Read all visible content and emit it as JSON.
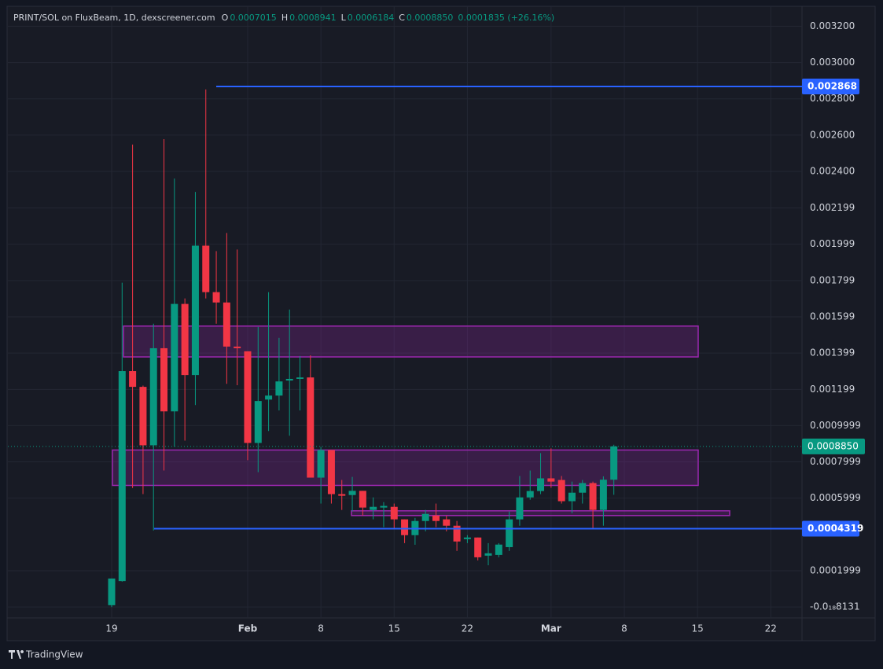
{
  "chart_data": {
    "type": "candlestick",
    "title": "PRINT/SOL on FluxBeam, 1D, dexscreener.com",
    "ohlc_legend": [
      {
        "key": "O",
        "value": "0.0007015"
      },
      {
        "key": "H",
        "value": "0.0008941"
      },
      {
        "key": "L",
        "value": "0.0006184"
      },
      {
        "key": "C",
        "value": "0.0008850"
      }
    ],
    "change": "0.0001835 (+26.16%)",
    "categories": [
      "19",
      null,
      null,
      null,
      null,
      null,
      null,
      null,
      null,
      null,
      null,
      null,
      null,
      "Feb",
      null,
      null,
      null,
      null,
      null,
      null,
      "8",
      null,
      null,
      null,
      null,
      null,
      null,
      "15",
      null,
      null,
      null,
      null,
      null,
      null,
      "22",
      null,
      null,
      null,
      null,
      null,
      null,
      null,
      "Mar",
      null,
      null,
      null,
      null,
      null,
      null,
      "8",
      null,
      null,
      null,
      null,
      null,
      null,
      "15",
      null,
      null,
      null,
      null,
      null,
      null,
      "22"
    ],
    "open": [
      1e-05,
      0.000143,
      0.0013,
      0.001213,
      0.000891,
      0.001426,
      0.001078,
      0.00167,
      0.001278,
      0.001991,
      0.001735,
      0.001678,
      0.001435,
      0.001409,
      0.000904,
      0.001143,
      0.001165,
      0.001248,
      0.001257,
      0.001265,
      0.000713,
      0.000865,
      0.000622,
      0.000617,
      0.00064,
      0.000535,
      0.000548,
      0.000552,
      0.000483,
      0.000396,
      0.000474,
      0.000504,
      0.000483,
      0.000448,
      0.000374,
      0.000383,
      0.000283,
      0.000287,
      0.00033,
      0.000483,
      0.000604,
      0.000639,
      0.000709,
      0.0007,
      0.000583,
      0.00063,
      0.000683,
      0.000535,
      0.0007015,
      null,
      null,
      null,
      null,
      null,
      null,
      null,
      null,
      null,
      null,
      null,
      null,
      null,
      null,
      null
    ],
    "high": [
      0.000157,
      0.001787,
      0.002548,
      0.00122,
      0.001561,
      0.002578,
      0.002361,
      0.0017,
      0.002287,
      0.002852,
      0.001961,
      0.002061,
      0.00197,
      0.001409,
      0.001543,
      0.001735,
      0.001483,
      0.001639,
      0.001383,
      0.001387,
      0.000883,
      0.000865,
      0.0007,
      0.000717,
      0.00064,
      0.000604,
      0.000578,
      0.00057,
      0.000483,
      0.000491,
      0.000535,
      0.00057,
      0.000504,
      0.000474,
      0.000396,
      0.000383,
      0.000352,
      0.000352,
      0.000526,
      0.000722,
      0.000752,
      0.000848,
      0.000874,
      0.000722,
      0.000691,
      0.0007,
      0.000691,
      0.00072,
      0.0008941,
      null,
      null,
      null,
      null,
      null,
      null,
      null,
      null,
      null,
      null,
      null,
      null,
      null,
      null,
      null
    ],
    "low": [
      0,
      0.00014,
      0.000656,
      0.000622,
      0.000422,
      0.000752,
      0.000883,
      0.000917,
      0.001113,
      0.0017,
      0.001561,
      0.00123,
      0.001222,
      0.000809,
      0.000743,
      0.00097,
      0.001083,
      0.000944,
      0.001083,
      0.000713,
      0.00057,
      0.00057,
      0.000535,
      0.000526,
      0.000504,
      0.000483,
      0.00044,
      0.00043,
      0.000352,
      0.000343,
      0.000417,
      0.00044,
      0.000417,
      0.000309,
      0.000352,
      0.000257,
      0.00023,
      0.000274,
      0.000309,
      0.000448,
      0.000591,
      0.000622,
      0.000657,
      0.00057,
      0.000517,
      0.00057,
      0.00043,
      0.000448,
      0.0006184,
      null,
      null,
      null,
      null,
      null,
      null,
      null,
      null,
      null,
      null,
      null,
      null,
      null,
      null,
      null
    ],
    "close": [
      0.000157,
      0.0013,
      0.001213,
      0.000891,
      0.001426,
      0.001078,
      0.00167,
      0.001278,
      0.001991,
      0.001735,
      0.001678,
      0.001435,
      0.001426,
      0.000904,
      0.001135,
      0.001165,
      0.001243,
      0.001257,
      0.001265,
      0.000713,
      0.000865,
      0.000622,
      0.000613,
      0.00064,
      0.000548,
      0.000552,
      0.000557,
      0.000483,
      0.000396,
      0.000474,
      0.000513,
      0.000474,
      0.000448,
      0.000361,
      0.000383,
      0.000274,
      0.000296,
      0.000344,
      0.000483,
      0.000604,
      0.000639,
      0.000709,
      0.000691,
      0.000583,
      0.00063,
      0.000683,
      0.000535,
      0.0007015,
      0.000885,
      null,
      null,
      null,
      null,
      null,
      null,
      null,
      null,
      null,
      null,
      null,
      null,
      null,
      null,
      null
    ],
    "up_color": "#089981",
    "down_color": "#f23645",
    "ylim": [
      -6e-05,
      0.00331
    ],
    "yticks": [
      {
        "value": 0.0032,
        "label": "0.003200"
      },
      {
        "value": 0.003,
        "label": "0.003000"
      },
      {
        "value": 0.0028,
        "label": "0.002800"
      },
      {
        "value": 0.0026,
        "label": "0.002600"
      },
      {
        "value": 0.0024,
        "label": "0.002400"
      },
      {
        "value": 0.002199,
        "label": "0.002199"
      },
      {
        "value": 0.001999,
        "label": "0.001999"
      },
      {
        "value": 0.001799,
        "label": "0.001799"
      },
      {
        "value": 0.001599,
        "label": "0.001599"
      },
      {
        "value": 0.001399,
        "label": "0.001399"
      },
      {
        "value": 0.001199,
        "label": "0.001199"
      },
      {
        "value": 0.0009999,
        "label": "0.0009999"
      },
      {
        "value": 0.0007999,
        "label": "0.0007999"
      },
      {
        "value": 0.0005999,
        "label": "0.0005999"
      },
      {
        "value": 0.0001999,
        "label": "0.0001999"
      },
      {
        "value": -8.131e-19,
        "label": "-0.0₁₈8131"
      }
    ],
    "grid": true,
    "zones": [
      {
        "high": 0.001548,
        "low": 0.001378,
        "color": "#9c27b0"
      },
      {
        "high": 0.000865,
        "low": 0.00067,
        "color": "#9c27b0"
      },
      {
        "high": 0.00053,
        "low": 0.000504,
        "color": "#9c27b0"
      }
    ],
    "price_lines": [
      {
        "value": 0.002868,
        "color": "#2962ff"
      },
      {
        "value": 0.0004319,
        "color": "#2962ff"
      }
    ],
    "last_price": {
      "value": 0.000885,
      "label": "0.0008850",
      "color": "#089981"
    },
    "brand": "TradingView"
  }
}
